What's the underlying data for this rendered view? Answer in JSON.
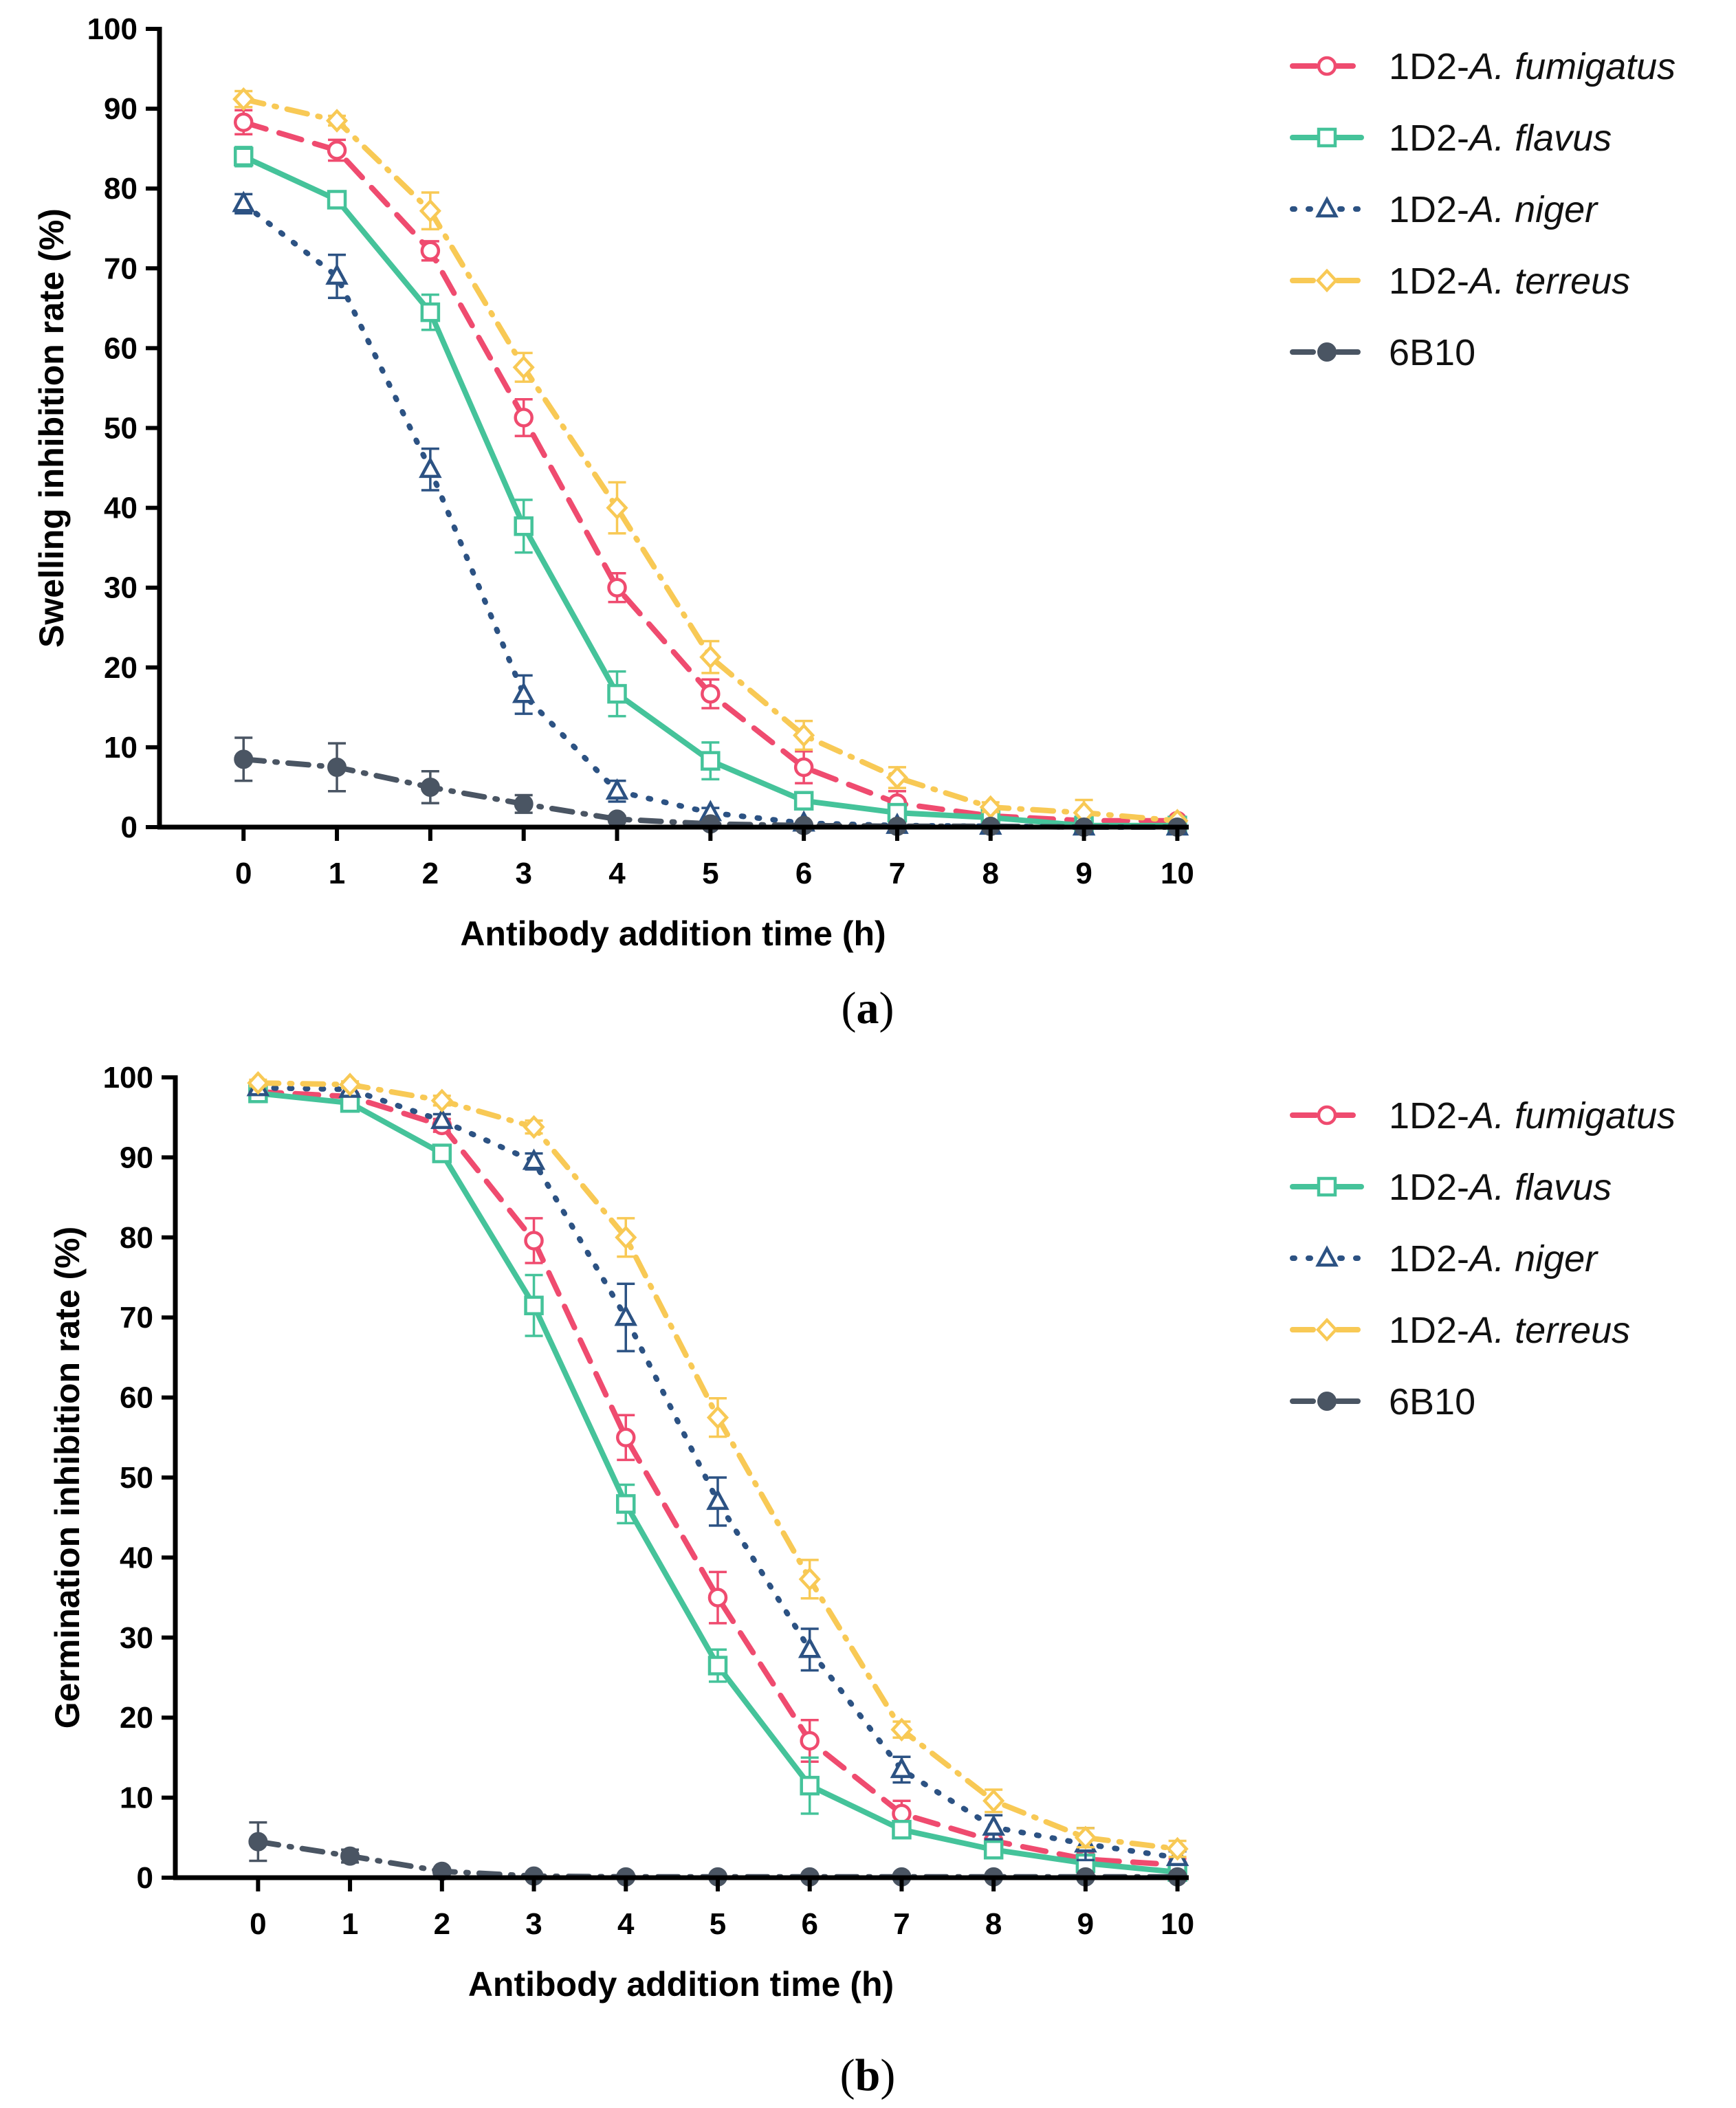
{
  "chart_data": [
    {
      "type": "line",
      "panel_label": "a",
      "title": "",
      "xlabel": "Antibody addition time (h)",
      "ylabel": "Swelling inhibition rate (%)",
      "xlim": [
        -0.9,
        10.1
      ],
      "ylim": [
        0,
        100
      ],
      "x": [
        0,
        1,
        2,
        3,
        4,
        5,
        6,
        7,
        8,
        9,
        10
      ],
      "x_ticks": [
        "0",
        "1",
        "2",
        "3",
        "4",
        "5",
        "6",
        "7",
        "8",
        "9",
        "10"
      ],
      "y_ticks": [
        "0",
        "10",
        "20",
        "30",
        "40",
        "50",
        "60",
        "70",
        "80",
        "90",
        "100"
      ],
      "legend_position": "right",
      "series": [
        {
          "name": "1D2-A. fumigatus",
          "prefix": "1D2-",
          "italic": "A. fumigatus",
          "color": "#EF4B6F",
          "dash": "long-dash",
          "marker": "open-circle",
          "values": [
            88.3,
            84.8,
            72.2,
            51.3,
            30.0,
            16.7,
            7.5,
            3.0,
            1.4,
            0.8,
            0.8
          ],
          "errors": [
            1.5,
            1.3,
            1.2,
            2.3,
            1.8,
            1.8,
            2.0,
            1.5,
            0.6,
            0.5,
            0.3
          ]
        },
        {
          "name": "1D2-A. flavus",
          "prefix": "1D2-",
          "italic": "A. flavus",
          "color": "#45C39A",
          "dash": "solid",
          "marker": "open-square",
          "values": [
            84.0,
            78.6,
            64.5,
            37.7,
            16.7,
            8.3,
            3.3,
            1.8,
            1.2,
            0.2,
            0.2
          ],
          "errors": [
            1.2,
            0.6,
            2.2,
            3.3,
            2.8,
            2.3,
            0.8,
            0.6,
            0.4,
            0.2,
            0.2
          ]
        },
        {
          "name": "1D2-A. niger",
          "prefix": "1D2-",
          "italic": "A. niger",
          "color": "#2C5283",
          "dash": "dotted",
          "marker": "open-triangle",
          "values": [
            78.1,
            69.0,
            44.8,
            16.6,
            4.5,
            1.8,
            0.5,
            0.2,
            0.1,
            0.0,
            0.0
          ],
          "errors": [
            1.2,
            2.7,
            2.6,
            2.4,
            1.3,
            0.6,
            0.3,
            0.2,
            0.1,
            0.1,
            0.1
          ]
        },
        {
          "name": "1D2-A. terreus",
          "prefix": "1D2-",
          "italic": "A. terreus",
          "color": "#F8C955",
          "dash": "dash-dot",
          "marker": "open-diamond",
          "values": [
            91.2,
            88.5,
            77.2,
            57.6,
            40.0,
            21.3,
            11.5,
            6.2,
            2.5,
            1.8,
            0.8
          ],
          "errors": [
            1.0,
            0.6,
            2.3,
            1.8,
            3.2,
            2.0,
            1.8,
            1.3,
            0.6,
            1.6,
            0.3
          ]
        },
        {
          "name": "6B10",
          "prefix": "6B10",
          "italic": "",
          "color": "#4A5563",
          "dash": "dash-dot",
          "marker": "filled-circle",
          "values": [
            8.5,
            7.5,
            5.0,
            2.9,
            1.0,
            0.4,
            0.2,
            0.1,
            0.1,
            0.0,
            0.0
          ],
          "errors": [
            2.7,
            3.0,
            2.0,
            1.1,
            0.4,
            0.2,
            0.1,
            0.1,
            0.1,
            0.1,
            0.1
          ]
        }
      ]
    },
    {
      "type": "line",
      "panel_label": "b",
      "title": "",
      "xlabel": "Antibody addition time (h)",
      "ylabel": "Germination inhibition rate (%)",
      "xlim": [
        -0.9,
        10.1
      ],
      "ylim": [
        0,
        100
      ],
      "x": [
        0,
        1,
        2,
        3,
        4,
        5,
        6,
        7,
        8,
        9,
        10
      ],
      "x_ticks": [
        "0",
        "1",
        "2",
        "3",
        "4",
        "5",
        "6",
        "7",
        "8",
        "9",
        "10"
      ],
      "y_ticks": [
        "0",
        "10",
        "20",
        "30",
        "40",
        "50",
        "60",
        "70",
        "80",
        "90",
        "100"
      ],
      "legend_position": "right",
      "series": [
        {
          "name": "1D2-A. fumigatus",
          "prefix": "1D2-",
          "italic": "A. fumigatus",
          "color": "#EF4B6F",
          "dash": "long-dash",
          "marker": "open-circle",
          "values": [
            98.2,
            97.6,
            94.0,
            79.6,
            55.0,
            35.0,
            17.1,
            8.0,
            4.6,
            2.3,
            1.6
          ],
          "errors": [
            0.5,
            0.5,
            0.8,
            2.8,
            2.8,
            3.2,
            2.6,
            1.6,
            1.0,
            0.8,
            0.8
          ]
        },
        {
          "name": "1D2-A. flavus",
          "prefix": "1D2-",
          "italic": "A. flavus",
          "color": "#45C39A",
          "dash": "solid",
          "marker": "open-square",
          "values": [
            98.0,
            96.8,
            90.5,
            71.5,
            46.7,
            26.5,
            11.5,
            6.0,
            3.5,
            1.8,
            0.7
          ],
          "errors": [
            0.5,
            0.6,
            0.8,
            3.8,
            2.4,
            2.0,
            3.5,
            1.0,
            0.9,
            0.5,
            0.5
          ]
        },
        {
          "name": "1D2-A. niger",
          "prefix": "1D2-",
          "italic": "A. niger",
          "color": "#2C5283",
          "dash": "dotted",
          "marker": "open-triangle",
          "values": [
            98.7,
            98.5,
            94.6,
            89.5,
            70.0,
            47.0,
            28.5,
            13.5,
            6.3,
            4.2,
            2.5
          ],
          "errors": [
            0.5,
            0.5,
            0.8,
            1.0,
            4.2,
            3.0,
            2.6,
            1.6,
            1.5,
            2.0,
            0.8
          ]
        },
        {
          "name": "1D2-A. terreus",
          "prefix": "1D2-",
          "italic": "A. terreus",
          "color": "#F8C955",
          "dash": "dash-dot",
          "marker": "open-diamond",
          "values": [
            99.3,
            99.1,
            97.1,
            93.8,
            80.0,
            57.5,
            37.3,
            18.5,
            9.6,
            5.0,
            3.6
          ],
          "errors": [
            0.4,
            0.4,
            0.6,
            0.8,
            2.4,
            2.4,
            2.4,
            1.0,
            1.4,
            1.2,
            1.0
          ]
        },
        {
          "name": "6B10",
          "prefix": "6B10",
          "italic": "",
          "color": "#4A5563",
          "dash": "dash-dot",
          "marker": "filled-circle",
          "values": [
            4.5,
            2.7,
            0.8,
            0.2,
            0.1,
            0.1,
            0.1,
            0.1,
            0.1,
            0.1,
            0.1
          ],
          "errors": [
            2.4,
            0.8,
            0.3,
            0.1,
            0.1,
            0.1,
            0.1,
            0.1,
            0.1,
            0.1,
            0.1
          ]
        }
      ]
    }
  ],
  "captions": [
    {
      "open": "(",
      "label": "a",
      "close": ")"
    },
    {
      "open": "(",
      "label": "b",
      "close": ")"
    }
  ]
}
